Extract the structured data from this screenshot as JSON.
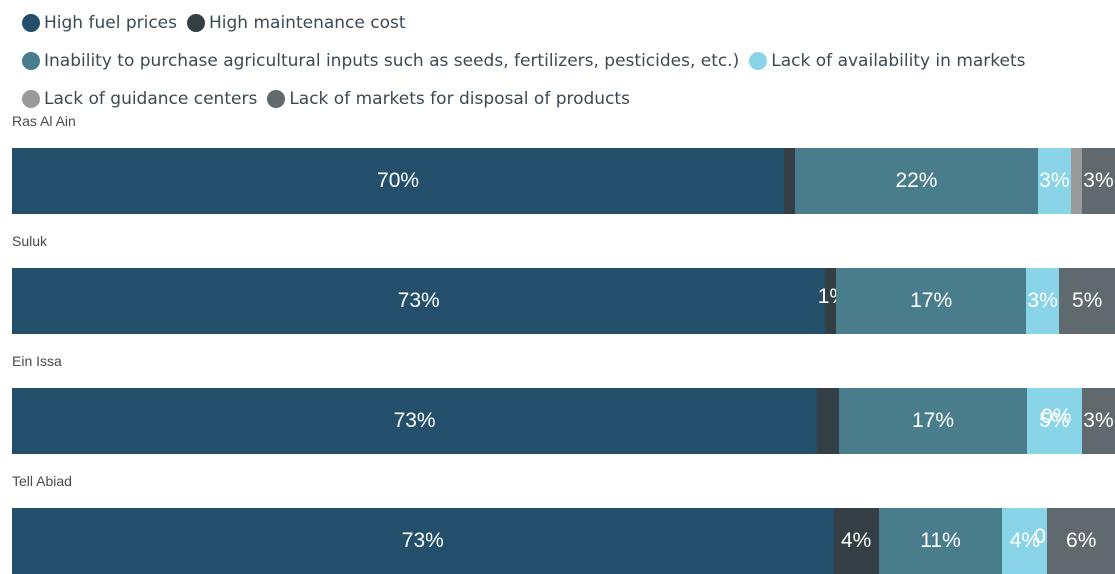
{
  "chart_data": {
    "type": "bar",
    "orientation": "horizontal",
    "stacked": true,
    "normalized_to_percent": true,
    "legend_position": "top",
    "series": [
      {
        "name": "High fuel prices",
        "color": "#234f6b"
      },
      {
        "name": "High maintenance cost",
        "color": "#333f45"
      },
      {
        "name": "Inability to purchase agricultural inputs such as seeds, fertilizers, pesticides, etc.)",
        "color": "#4a7d8c"
      },
      {
        "name": "Lack of availability in markets",
        "color": "#8ad4e8"
      },
      {
        "name": "Lack of guidance centers",
        "color": "#9a9a9a"
      },
      {
        "name": "Lack of markets for disposal of products",
        "color": "#606a6e"
      }
    ],
    "rows": [
      {
        "category": "Ras Al Ain",
        "values": [
          70,
          1,
          22,
          3,
          1,
          3
        ],
        "labels": [
          "70%",
          "",
          "22%",
          "3%",
          "",
          "3%"
        ]
      },
      {
        "category": "Suluk",
        "values": [
          73,
          1,
          17,
          3,
          0,
          5
        ],
        "labels": [
          "73%",
          "",
          "17%",
          "3%",
          "",
          "5%"
        ],
        "overlap_labels": [
          "",
          "1%",
          "",
          "",
          "",
          ""
        ]
      },
      {
        "category": "Ein Issa",
        "values": [
          73,
          2,
          17,
          5,
          0,
          3
        ],
        "labels": [
          "73%",
          "",
          "17%",
          "5%",
          "",
          "3%"
        ],
        "overlap_labels": [
          "",
          "",
          "",
          "0%",
          "",
          ""
        ]
      },
      {
        "category": "Tell Abiad",
        "values": [
          73,
          4,
          11,
          4,
          0,
          6
        ],
        "labels": [
          "73%",
          "4%",
          "11%",
          "4%",
          "",
          "6%"
        ],
        "overlap_labels": [
          "",
          "",
          "",
          "",
          "0%",
          ""
        ]
      }
    ]
  }
}
